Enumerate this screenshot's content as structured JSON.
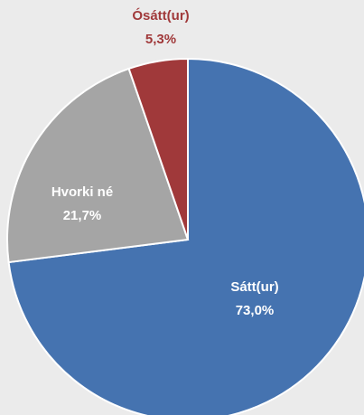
{
  "chart_data": {
    "type": "pie",
    "categories": [
      "Sátt(ur)",
      "Hvorki né",
      "Ósátt(ur)"
    ],
    "values": [
      73.0,
      21.7,
      5.3
    ],
    "value_labels": [
      "73,0%",
      "21,7%",
      "5,3%"
    ],
    "colors": [
      "#4573b0",
      "#a5a5a5",
      "#a0393a"
    ],
    "label_colors": [
      "#ffffff",
      "#ffffff",
      "#a0393a"
    ]
  }
}
